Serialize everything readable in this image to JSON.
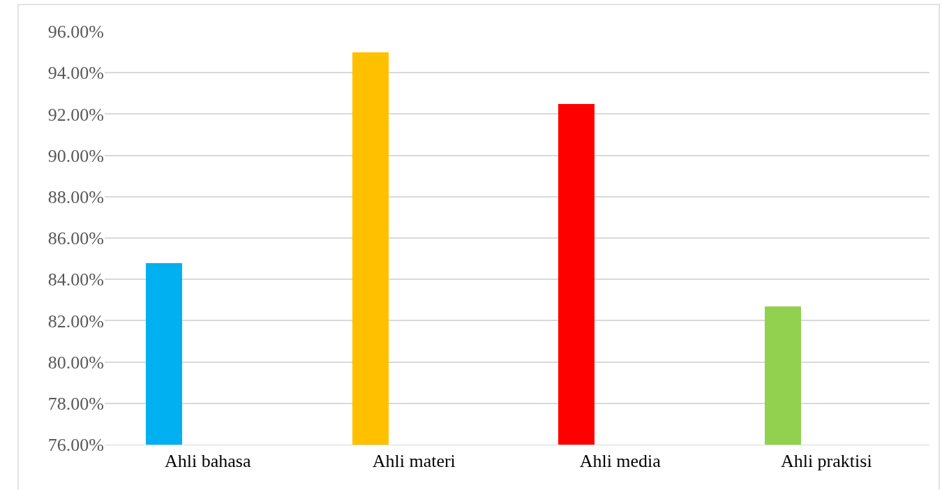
{
  "chart_data": {
    "type": "bar",
    "categories": [
      "Ahli bahasa",
      "Ahli materi",
      "Ahli media",
      "Ahli praktisi"
    ],
    "values": [
      84.8,
      95.0,
      92.5,
      82.7
    ],
    "colors": [
      "#00b0f0",
      "#ffc000",
      "#ff0000",
      "#92d050"
    ],
    "ylim": [
      76,
      96
    ],
    "yticks": [
      {
        "value": 76,
        "label": "76.00%"
      },
      {
        "value": 78,
        "label": "78.00%"
      },
      {
        "value": 80,
        "label": "80.00%"
      },
      {
        "value": 82,
        "label": "82.00%"
      },
      {
        "value": 84,
        "label": "84.00%"
      },
      {
        "value": 86,
        "label": "86.00%"
      },
      {
        "value": 88,
        "label": "88.00%"
      },
      {
        "value": 90,
        "label": "90.00%"
      },
      {
        "value": 92,
        "label": "92.00%"
      },
      {
        "value": 94,
        "label": "94.00%"
      },
      {
        "value": 96,
        "label": "96.00%"
      }
    ],
    "grid": "y"
  }
}
